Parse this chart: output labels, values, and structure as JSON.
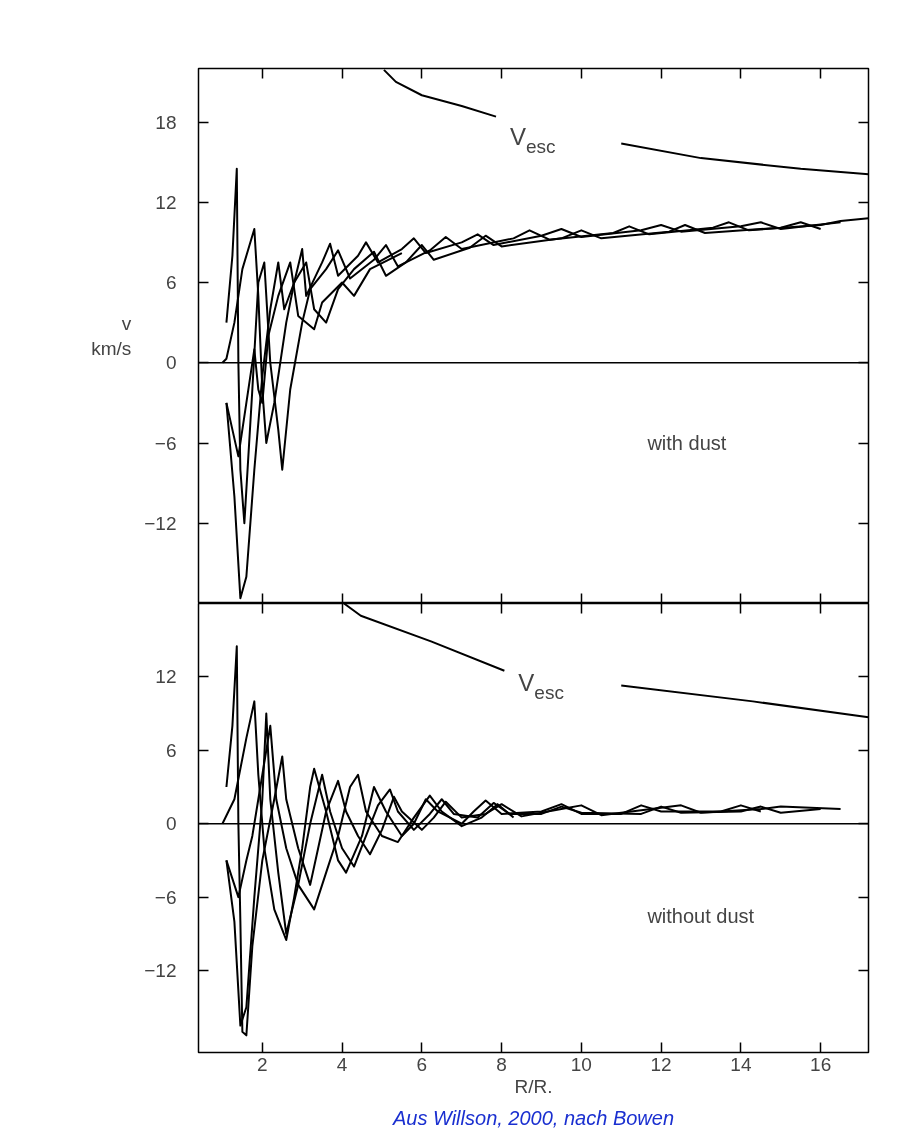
{
  "chart_data": [
    {
      "type": "line",
      "ylabel": "v\nkm/s",
      "xlim": [
        0.4,
        17.2
      ],
      "ylim": [
        -18,
        22
      ],
      "xticks": [
        2,
        4,
        6,
        8,
        10,
        12,
        14,
        16
      ],
      "yticks": [
        -12,
        -6,
        0,
        6,
        12,
        18
      ],
      "tick_labels": "y",
      "grid": false,
      "line_style": "solid",
      "marker": "none",
      "ref_lines": [
        {
          "axis": "y",
          "value": 0,
          "label": null
        }
      ],
      "annotations": [
        "with dust"
      ],
      "series": [
        {
          "name": "V$_{esc}$",
          "color": "#000000",
          "x": [
            5.05,
            5.35,
            6.0,
            7.0,
            7.86,
            9.5,
            11.0,
            13.0,
            15.5,
            17.2
          ],
          "values": [
            21.9,
            21.0,
            20.0,
            19.2,
            18.4,
            null,
            16.4,
            15.3,
            14.5,
            14.1
          ]
        },
        {
          "color": "#000000",
          "x": [
            1.1,
            1.3,
            1.45,
            1.6,
            1.8,
            2.0,
            2.2,
            2.4,
            2.55,
            2.8,
            3.0,
            3.1,
            3.5,
            3.7,
            3.9,
            4.4,
            4.6,
            4.9,
            5.5,
            5.8,
            6.1,
            7.0,
            7.4,
            7.8,
            9.0,
            9.5,
            10.0,
            11.5,
            12.0,
            12.5,
            14.0,
            14.5,
            15.0,
            16.5
          ],
          "values": [
            -3,
            -10,
            -17.6,
            -16,
            -8,
            -1,
            4,
            7.5,
            4,
            6,
            8.5,
            5,
            7.5,
            8.9,
            6.5,
            8,
            9,
            7.5,
            8.5,
            9.3,
            8.2,
            9,
            9.6,
            8.8,
            9.5,
            10,
            9.4,
            9.9,
            10.3,
            9.8,
            10.2,
            10.5,
            10,
            10.5
          ]
        },
        {
          "color": "#000000",
          "x": [
            1.1,
            1.25,
            1.36,
            1.4,
            1.45,
            1.55,
            1.75,
            1.9,
            2.05,
            2.2,
            2.4,
            2.5,
            2.7,
            3.0,
            3.2,
            3.6,
            3.9,
            4.2,
            4.8,
            5.1,
            5.4,
            6.2,
            6.6,
            7.0,
            8.3,
            8.7,
            9.2,
            10.8,
            11.2,
            11.7,
            13.3,
            13.7,
            14.2,
            16.0,
            16.5,
            17.2
          ],
          "values": [
            3,
            8,
            14.5,
            0,
            -8,
            -12,
            -2,
            6,
            7.5,
            0,
            -5,
            -8,
            -2,
            3,
            5.5,
            7,
            8.4,
            6.3,
            7.7,
            8.8,
            7.2,
            8.4,
            9.4,
            8.5,
            9.3,
            9.9,
            9.2,
            9.7,
            10.2,
            9.6,
            10.1,
            10.5,
            9.9,
            10.3,
            10.6,
            10.8
          ]
        },
        {
          "color": "#000000",
          "x": [
            1.0,
            1.1,
            1.3,
            1.5,
            1.8,
            1.9,
            2.0,
            2.1,
            2.3,
            2.6,
            2.8,
            3.1,
            3.3,
            3.6,
            3.9,
            4.3,
            4.8,
            5.1,
            5.6,
            6.0,
            6.3,
            7.2,
            7.6,
            8.0,
            9.5,
            10.0,
            10.5,
            12.2,
            12.6,
            13.1,
            15.0,
            15.5,
            16.0
          ],
          "values": [
            0,
            0.3,
            3,
            7,
            10,
            5,
            -2,
            -6,
            -3,
            3,
            6,
            7.5,
            4,
            3,
            5.5,
            7,
            8.3,
            6.5,
            7.5,
            8.8,
            7.7,
            8.6,
            9.5,
            8.7,
            9.3,
            9.9,
            9.3,
            9.8,
            10.3,
            9.7,
            10.1,
            10.5,
            10
          ]
        },
        {
          "color": "#000000",
          "x": [
            1.1,
            1.4,
            1.6,
            1.8,
            1.9,
            2.0,
            2.15,
            2.4,
            2.7,
            2.9,
            3.3,
            3.5,
            4.0,
            4.3,
            4.7,
            5.1,
            5.5
          ],
          "values": [
            -3,
            -7,
            -3,
            1,
            -2,
            -3,
            2,
            5,
            7.5,
            3.5,
            2.5,
            4.5,
            6,
            5,
            7,
            7.6,
            8.2
          ]
        }
      ]
    },
    {
      "type": "line",
      "xlabel": "R/R.",
      "xlim": [
        0.4,
        17.2
      ],
      "ylim": [
        -18.7,
        18
      ],
      "xticks": [
        2,
        4,
        6,
        8,
        10,
        12,
        14,
        16
      ],
      "yticks": [
        -12,
        -6,
        0,
        6,
        12
      ],
      "grid": false,
      "line_style": "solid",
      "marker": "none",
      "ref_lines": [
        {
          "axis": "y",
          "value": 0,
          "label": null
        }
      ],
      "annotations": [
        "without dust",
        "Aus Willson, 2000, nach Bowen"
      ],
      "series": [
        {
          "name": "V$_{esc}$",
          "color": "#000000",
          "x": [
            4.05,
            4.47,
            6.23,
            8.07,
            9.5,
            11.0,
            14.3,
            17.2
          ],
          "values": [
            18,
            17.0,
            14.9,
            12.5,
            null,
            11.3,
            10.0,
            8.7
          ]
        },
        {
          "color": "#000000",
          "x": [
            1.1,
            1.25,
            1.36,
            1.4,
            1.45,
            1.5,
            1.6,
            1.75,
            2.0,
            2.3,
            2.5,
            2.6,
            2.9,
            3.2,
            3.4,
            3.6,
            3.9,
            4.1,
            4.4,
            4.7,
            5.0,
            5.3,
            5.5,
            6.0,
            6.3,
            6.6,
            7.0,
            7.6,
            8.0,
            8.5,
            9.5,
            10.0,
            10.5,
            12.0,
            12.5,
            13.0,
            14.5,
            15.0,
            16.5
          ],
          "values": [
            3,
            8,
            14.5,
            0,
            -8,
            -17,
            -17.3,
            -10,
            -3,
            2,
            5.5,
            2,
            -2,
            -5,
            -2,
            1,
            3.5,
            1,
            -1,
            -2.5,
            -0.5,
            2.2,
            1,
            -0.5,
            0.5,
            1.8,
            0.5,
            0.8,
            1.6,
            0.6,
            1.2,
            1.5,
            0.7,
            1.3,
            1.5,
            0.9,
            1.2,
            1.4,
            1.2
          ]
        },
        {
          "color": "#000000",
          "x": [
            1.1,
            1.3,
            1.45,
            1.6,
            1.8,
            2.0,
            2.1,
            2.2,
            2.4,
            2.6,
            2.9,
            3.2,
            3.5,
            3.7,
            4.0,
            4.3,
            4.6,
            4.9,
            5.2,
            5.4,
            5.8,
            6.2,
            6.5,
            6.8,
            7.4,
            7.8,
            8.2,
            9.0,
            9.5,
            10.0,
            11.5,
            12.0,
            12.5,
            14.0,
            14.5,
            15.0,
            16.0
          ],
          "values": [
            -3,
            -8,
            -16.5,
            -15,
            -6,
            2,
            9,
            2,
            -4,
            -9,
            -5,
            0,
            4,
            1,
            -2,
            -3.5,
            -1,
            1.5,
            2.8,
            1,
            -0.5,
            0.8,
            2,
            0.8,
            0.5,
            1.7,
            0.8,
            0.8,
            1.4,
            0.9,
            0.8,
            1.4,
            0.9,
            1,
            1.4,
            0.9,
            1.2
          ]
        },
        {
          "color": "#000000",
          "x": [
            1.0,
            1.3,
            1.6,
            1.8,
            1.9,
            2.05,
            2.3,
            2.6,
            2.8,
            3.0,
            3.2,
            3.3,
            3.6,
            3.9,
            4.1,
            4.5,
            4.8,
            5.1,
            5.5,
            5.8,
            6.1,
            6.4,
            7.0,
            7.3,
            7.6,
            8.0,
            9.0,
            9.5,
            10.0,
            11.0,
            11.5,
            12.0,
            13.5,
            14.0,
            14.5
          ],
          "values": [
            0,
            2,
            7,
            10,
            4,
            -2,
            -7,
            -9.5,
            -6,
            -2,
            3,
            4.5,
            1,
            -3,
            -4,
            -1,
            3,
            1,
            -1,
            0,
            2,
            1,
            0,
            1,
            1.9,
            0.8,
            1,
            1.6,
            0.8,
            0.8,
            1.5,
            1,
            1,
            1.5,
            1
          ]
        },
        {
          "color": "#000000",
          "x": [
            1.1,
            1.4,
            1.6,
            1.75,
            1.9,
            2.1,
            2.2,
            2.35,
            2.6,
            2.9,
            3.3,
            3.6,
            3.9,
            4.2,
            4.4,
            4.6,
            5.0,
            5.4,
            5.8,
            6.2,
            6.5,
            7.0,
            7.5,
            7.9,
            8.3
          ],
          "values": [
            -3,
            -6,
            -3,
            -1,
            2,
            6,
            8,
            2,
            -2,
            -5,
            -7,
            -4,
            -1,
            3,
            4,
            1,
            -1,
            -1.5,
            0.5,
            2.3,
            1,
            -0.2,
            0.5,
            1.6,
            0.5
          ]
        }
      ]
    }
  ]
}
